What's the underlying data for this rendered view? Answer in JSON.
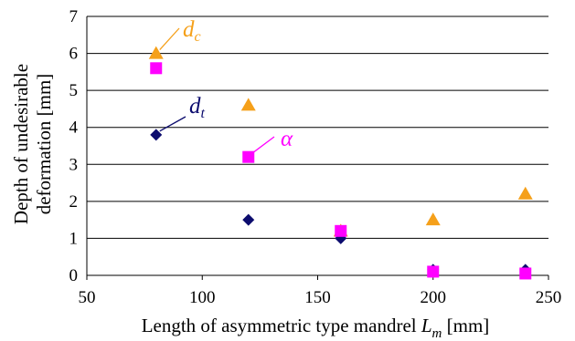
{
  "chart_data": {
    "type": "scatter",
    "xlabel": "Length of asymmetric type mandrel ",
    "xlabel_var": "L",
    "xlabel_var_sub": "m",
    "xlabel_unit": " [mm]",
    "ylabel_line1": "Depth of undesirable",
    "ylabel_line2": "deformation [mm]",
    "xlim": [
      50,
      250
    ],
    "ylim": [
      0,
      7
    ],
    "x_ticks": [
      "50",
      "100",
      "150",
      "200",
      "250"
    ],
    "y_ticks": [
      "0",
      "1",
      "2",
      "3",
      "4",
      "5",
      "6",
      "7"
    ],
    "grid": "horizontal",
    "legend": "none",
    "series": [
      {
        "label": "d",
        "label_sub": "c",
        "marker": "triangle",
        "color": "#f5a01a",
        "x": [
          80,
          120,
          160,
          200,
          240
        ],
        "y": [
          6.0,
          4.6,
          1.2,
          1.5,
          2.2
        ]
      },
      {
        "label": "d",
        "label_sub": "t",
        "marker": "diamond",
        "color": "#0c0c6e",
        "x": [
          80,
          120,
          160,
          200,
          240
        ],
        "y": [
          3.8,
          1.5,
          1.0,
          0.15,
          0.15
        ]
      },
      {
        "label": "α",
        "label_sub": "",
        "marker": "square",
        "color": "#ff00ff",
        "x": [
          80,
          120,
          160,
          200,
          240
        ],
        "y": [
          5.6,
          3.2,
          1.2,
          0.1,
          0.05
        ]
      }
    ]
  }
}
